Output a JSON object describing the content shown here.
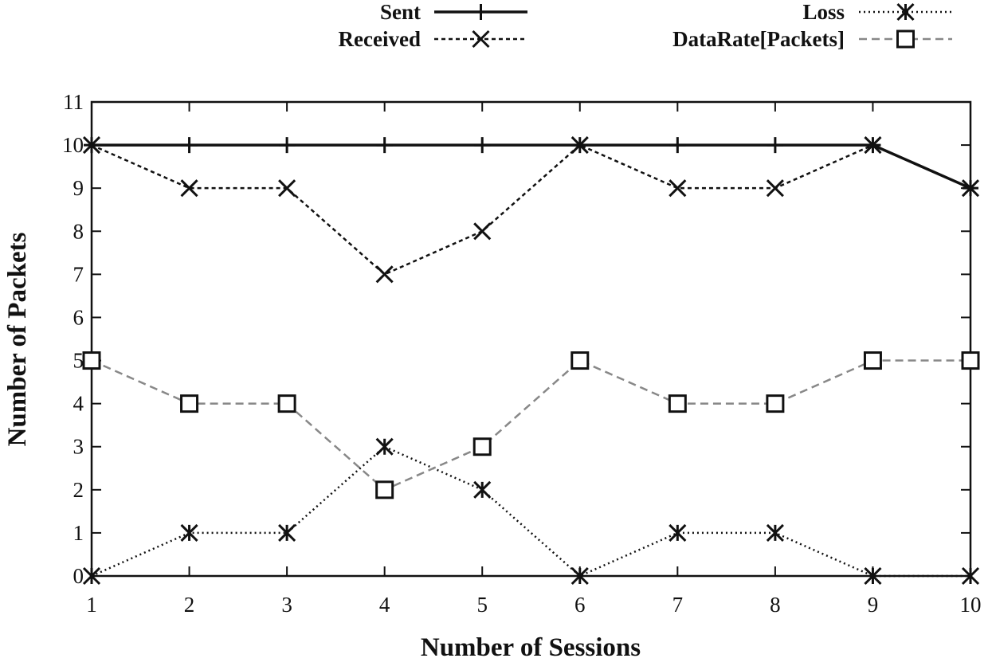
{
  "chart_data": {
    "type": "line",
    "xlabel": "Number of Sessions",
    "ylabel": "Number of Packets",
    "x": [
      1,
      2,
      3,
      4,
      5,
      6,
      7,
      8,
      9,
      10
    ],
    "xlim": [
      1,
      10
    ],
    "ylim": [
      0,
      11
    ],
    "x_ticks": [
      "1",
      "2",
      "3",
      "4",
      "5",
      "6",
      "7",
      "8",
      "9",
      "10"
    ],
    "y_ticks": [
      "0",
      "1",
      "2",
      "3",
      "4",
      "5",
      "6",
      "7",
      "8",
      "9",
      "10",
      "11"
    ],
    "grid": false,
    "legend_position": "top",
    "series": [
      {
        "name": "Sent",
        "values": [
          10,
          10,
          10,
          10,
          10,
          10,
          10,
          10,
          10,
          9
        ],
        "marker": "plus",
        "line_style": "solid",
        "color": "#111111"
      },
      {
        "name": "Received",
        "values": [
          10,
          9,
          9,
          7,
          8,
          10,
          9,
          9,
          10,
          9
        ],
        "marker": "cross",
        "line_style": "dashed",
        "color": "#111111"
      },
      {
        "name": "Loss",
        "values": [
          0,
          1,
          1,
          3,
          2,
          0,
          1,
          1,
          0,
          0
        ],
        "marker": "star",
        "line_style": "dotted",
        "color": "#111111"
      },
      {
        "name": "DataRate[Packets]",
        "values": [
          5,
          4,
          4,
          2,
          3,
          5,
          4,
          4,
          5,
          5
        ],
        "marker": "square",
        "line_style": "dash",
        "color": "#888888"
      }
    ]
  }
}
